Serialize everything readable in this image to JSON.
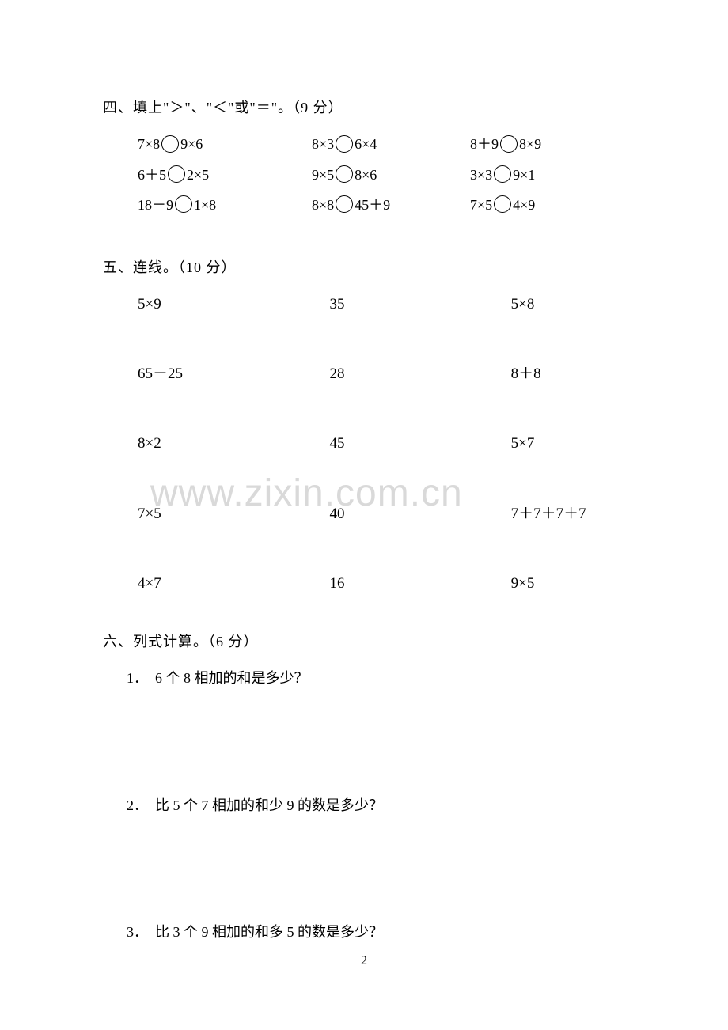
{
  "section4": {
    "heading": "四、填上\"＞\"、\"＜\"或\"＝\"。（9 分）",
    "rows": [
      [
        {
          "left": "7×8",
          "right": "9×6"
        },
        {
          "left": "8×3",
          "right": "6×4"
        },
        {
          "left": "8＋9",
          "right": "8×9"
        }
      ],
      [
        {
          "left": "6＋5",
          "right": "2×5"
        },
        {
          "left": "9×5",
          "right": "8×6"
        },
        {
          "left": "3×3",
          "right": "9×1"
        }
      ],
      [
        {
          "left": "18－9",
          "right": "1×8"
        },
        {
          "left": "8×8",
          "right": "45＋9"
        },
        {
          "left": "7×5",
          "right": "4×9"
        }
      ]
    ]
  },
  "section5": {
    "heading": "五、连线。（10 分）",
    "rows": [
      {
        "c1": "5×9",
        "c2": "35",
        "c3": "5×8"
      },
      {
        "c1": "65－25",
        "c2": "28",
        "c3": "8＋8"
      },
      {
        "c1": "8×2",
        "c2": "45",
        "c3": "5×7"
      },
      {
        "c1": "7×5",
        "c2": "40",
        "c3": "7＋7＋7＋7"
      },
      {
        "c1": "4×7",
        "c2": "16",
        "c3": "9×5"
      }
    ]
  },
  "section6": {
    "heading": "六、列式计算。（6 分）",
    "items": [
      {
        "num": "1．",
        "text": "6 个 8 相加的和是多少？"
      },
      {
        "num": "2．",
        "text": "比 5 个 7 相加的和少 9 的数是多少？"
      },
      {
        "num": "3．",
        "text": "比 3 个 9 相加的和多 5 的数是多少？"
      }
    ]
  },
  "watermark": "www.zixin.com.cn",
  "pageNumber": "2"
}
